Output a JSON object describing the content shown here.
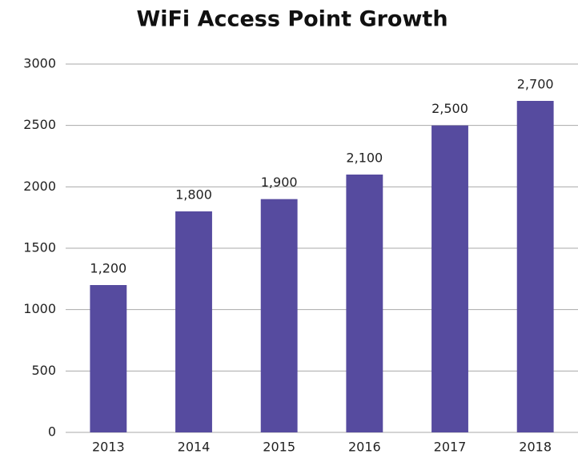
{
  "chart_data": {
    "type": "bar",
    "title": "WiFi Access Point Growth",
    "categories": [
      "2013",
      "2014",
      "2015",
      "2016",
      "2017",
      "2018"
    ],
    "values": [
      1200,
      1800,
      1900,
      2100,
      2500,
      2700
    ],
    "value_labels": [
      "1,200",
      "1,800",
      "1,900",
      "2,100",
      "2,500",
      "2,700"
    ],
    "color": "#564b9f",
    "ylim": [
      0,
      3000
    ],
    "yticks": [
      0,
      500,
      1000,
      1500,
      2000,
      2500,
      3000
    ],
    "grid": true
  }
}
